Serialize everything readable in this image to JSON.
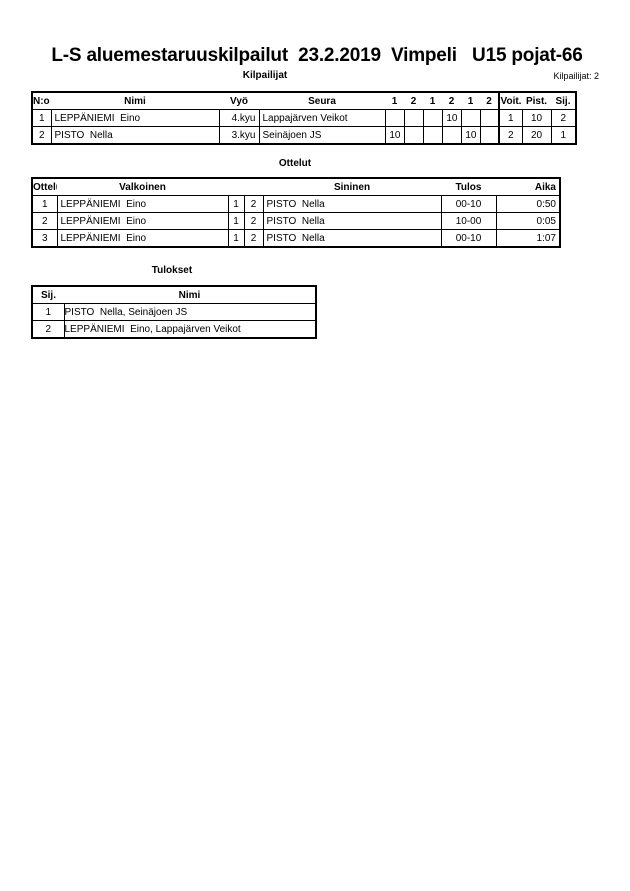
{
  "title": "L-S aluemestaruuskilpailut  23.2.2019  Vimpeli   U15 pojat-66",
  "competitors": {
    "heading": "Kilpailijat",
    "count_label": "Kilpailijat: 2",
    "headers": {
      "no": "N:o",
      "name": "Nimi",
      "belt": "Vyö",
      "club": "Seura",
      "s": [
        "1",
        "2",
        "1",
        "2",
        "1",
        "2"
      ],
      "wins": "Voit.",
      "points": "Pist.",
      "rank": "Sij."
    },
    "rows": [
      {
        "no": "1",
        "name": "LEPPÄNIEMI  Eino",
        "belt": "4.kyu",
        "club": "Lappajärven Veikot",
        "s": [
          "",
          "",
          "",
          "10",
          "",
          ""
        ],
        "wins": "1",
        "points": "10",
        "rank": "2"
      },
      {
        "no": "2",
        "name": "PISTO  Nella",
        "belt": "3.kyu",
        "club": "Seinäjoen JS",
        "s": [
          "10",
          "",
          "",
          "",
          "10",
          ""
        ],
        "wins": "2",
        "points": "20",
        "rank": "1"
      }
    ]
  },
  "matches": {
    "heading": "Ottelut",
    "headers": {
      "match": "Ottelu",
      "white": "Valkoinen",
      "blue": "Sininen",
      "result": "Tulos",
      "time": "Aika"
    },
    "rows": [
      {
        "match": "1",
        "white": "LEPPÄNIEMI  Eino",
        "w": "1",
        "b": "2",
        "blue": "PISTO  Nella",
        "result": "00-10",
        "time": "0:50"
      },
      {
        "match": "2",
        "white": "LEPPÄNIEMI  Eino",
        "w": "1",
        "b": "2",
        "blue": "PISTO  Nella",
        "result": "10-00",
        "time": "0:05"
      },
      {
        "match": "3",
        "white": "LEPPÄNIEMI  Eino",
        "w": "1",
        "b": "2",
        "blue": "PISTO  Nella",
        "result": "00-10",
        "time": "1:07"
      }
    ]
  },
  "results": {
    "heading": "Tulokset",
    "headers": {
      "rank": "Sij.",
      "name": "Nimi"
    },
    "rows": [
      {
        "rank": "1",
        "name": "PISTO  Nella, Seinäjoen JS"
      },
      {
        "rank": "2",
        "name": "LEPPÄNIEMI  Eino, Lappajärven Veikot"
      }
    ]
  }
}
